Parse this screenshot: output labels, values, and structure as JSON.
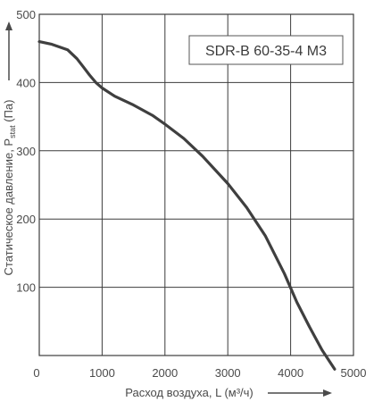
{
  "chart_data": {
    "type": "line",
    "title": "SDR-B 60-35-4 M3",
    "xlabel": "Расход воздуха, L (м³/ч)",
    "ylabel": "Статическое давление, P",
    "ylabel_sub": "stat",
    "ylabel_unit": " (Па)",
    "xlim": [
      0,
      5000
    ],
    "ylim": [
      0,
      500
    ],
    "xticks": [
      "0",
      "1000",
      "2000",
      "3000",
      "4000",
      "5000"
    ],
    "yticks": [
      "100",
      "200",
      "300",
      "400",
      "500"
    ],
    "grid": true,
    "series": [
      {
        "x": [
          0,
          200,
          450,
          600,
          700,
          800,
          900,
          1000,
          1200,
          1500,
          1800,
          2000,
          2300,
          2600,
          3000,
          3300,
          3600,
          3900,
          4100,
          4300,
          4500,
          4700
        ],
        "y": [
          460,
          456,
          448,
          435,
          423,
          411,
          400,
          392,
          380,
          367,
          352,
          339,
          318,
          292,
          252,
          217,
          175,
          120,
          78,
          42,
          8,
          -20
        ]
      }
    ]
  }
}
